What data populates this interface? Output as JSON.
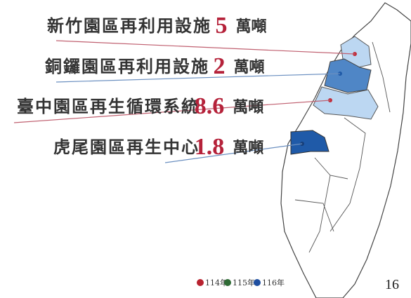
{
  "items": [
    {
      "label": "新竹園區再利用設施",
      "value": "5",
      "unit": "萬噸"
    },
    {
      "label": "銅鑼園區再利用設施",
      "value": "2",
      "unit": "萬噸"
    },
    {
      "label": "臺中園區再生循環系統",
      "value": "8.6",
      "unit": "萬噸"
    },
    {
      "label": "虎尾園區再生中心",
      "value": "1.8",
      "unit": "萬噸"
    }
  ],
  "legend": [
    {
      "label": "114年",
      "color": "#b8222f"
    },
    {
      "label": "115年",
      "color": "#2f6b35"
    },
    {
      "label": "116年",
      "color": "#1f4fa0"
    }
  ],
  "page_number": "16"
}
